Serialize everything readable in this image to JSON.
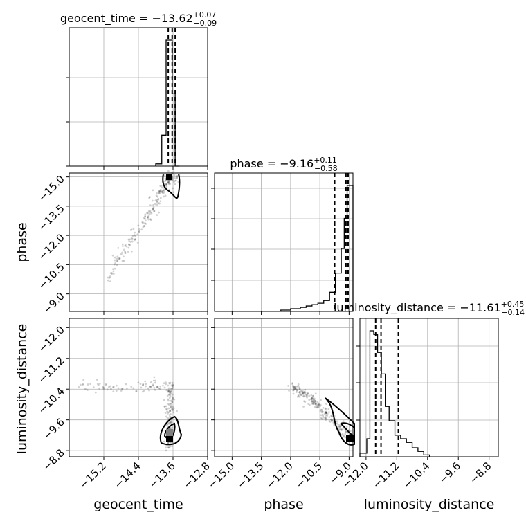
{
  "chart_data": {
    "type": "corner",
    "parameters": [
      "geocent_time",
      "phase",
      "luminosity_distance"
    ],
    "titles": {
      "geocent_time": {
        "name": "geocent_time",
        "median": "−13.62",
        "plus": "+0.07",
        "minus": "−0.09"
      },
      "phase": {
        "name": "phase",
        "median": "−9.16",
        "plus": "+0.11",
        "minus": "−0.58"
      },
      "luminosity_distance": {
        "name": "luminosity_distance",
        "median": "−11.61",
        "plus": "+0.45",
        "minus": "−0.14"
      }
    },
    "ranges": {
      "geocent_time": [
        -16.0,
        -12.8
      ],
      "phase": [
        -15.9,
        -8.8
      ],
      "luminosity_distance": [
        -12.16,
        -8.56
      ]
    },
    "ticks": {
      "geocent_time": [
        "−15.2",
        "−14.4",
        "−13.6",
        "−12.8"
      ],
      "phase_x": [
        "−15.0",
        "−13.5",
        "−12.0",
        "−10.5",
        "−9.0"
      ],
      "phase_y": [
        "−9.0",
        "−10.5",
        "−12.0",
        "−13.5",
        "−15.0"
      ],
      "luminosity_distance_x": [
        "−12.0",
        "−11.2",
        "−10.4",
        "−9.6",
        "−8.8"
      ],
      "luminosity_distance_y": [
        "−8.8",
        "−9.6",
        "−10.4",
        "−11.2",
        "−12.0"
      ]
    },
    "tick_values": {
      "geocent_time": [
        -15.2,
        -14.4,
        -13.6,
        -12.8
      ],
      "phase": [
        -15.0,
        -13.5,
        -12.0,
        -10.5,
        -9.0
      ],
      "luminosity_distance": [
        -12.0,
        -11.2,
        -10.4,
        -9.6,
        -8.8
      ]
    },
    "quantiles": {
      "geocent_time": [
        -13.71,
        -13.62,
        -13.55
      ],
      "phase": [
        -9.74,
        -9.16,
        -9.05
      ],
      "luminosity_distance": [
        -11.75,
        -11.61,
        -11.16
      ]
    },
    "histograms": {
      "geocent_time": {
        "edges": [
          -14.0,
          -13.86,
          -13.76,
          -13.69,
          -13.62,
          -13.55,
          -13.45
        ],
        "counts": [
          1,
          14,
          57,
          57,
          33,
          0
        ]
      },
      "phase": {
        "edges": [
          -12.5,
          -12.0,
          -11.5,
          -11.2,
          -10.9,
          -10.6,
          -10.3,
          -10.0,
          -9.7,
          -9.4,
          -9.25,
          -9.1,
          -9.0,
          -8.8
        ],
        "counts": [
          1,
          2,
          3,
          4,
          5,
          6,
          8,
          14,
          28,
          46,
          68,
          92,
          92
        ]
      },
      "luminosity_distance": {
        "edges": [
          -12.16,
          -11.98,
          -11.9,
          -11.8,
          -11.7,
          -11.6,
          -11.5,
          -11.4,
          -11.25,
          -11.1,
          -10.95,
          -10.8,
          -10.65,
          -10.5,
          -10.35
        ],
        "counts": [
          2,
          10,
          70,
          68,
          58,
          46,
          28,
          20,
          12,
          10,
          8,
          5,
          3,
          1
        ]
      }
    },
    "ylabels": {
      "phase": "phase",
      "luminosity_distance": "luminosity_distance"
    },
    "xlabels": {
      "geocent_time": "geocent_time",
      "phase": "phase",
      "luminosity_distance": "luminosity_distance"
    },
    "grid": true
  }
}
